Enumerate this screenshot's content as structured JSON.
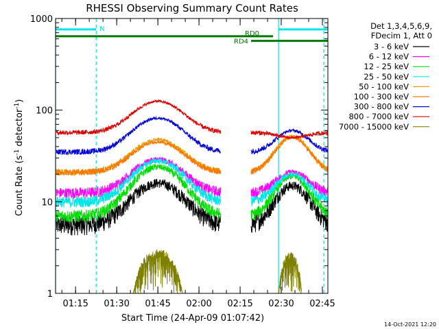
{
  "chart_data": {
    "type": "line",
    "title": "RHESSI Observing Summary Count Rates",
    "xlabel": "Start Time (24-Apr-09 01:07:42)",
    "ylabel_parts": [
      "Count Rate (s",
      "-1",
      " detector",
      "-1",
      ")"
    ],
    "y_scale": "log",
    "ylim": [
      1,
      1000
    ],
    "xlim": [
      "01:07:42",
      "02:47:00"
    ],
    "x_ticks": [
      "01:15",
      "01:30",
      "01:45",
      "02:00",
      "02:15",
      "02:30",
      "02:45"
    ],
    "y_ticks": [
      "1",
      "10",
      "100",
      "1000"
    ],
    "grid": false,
    "legend_position": "right",
    "legend_header": [
      "Det 1,3,4,5,6,9,",
      "FDecim 1, Att 0"
    ],
    "footer_date": "14-Oct-2021 12:20",
    "series": [
      {
        "name": "3 - 6 keV",
        "color": "#000000",
        "base": 5.6,
        "peak1": 16,
        "peak2": 15,
        "noise": 0.12,
        "gap_level": 5.5
      },
      {
        "name": "6 - 12 keV",
        "color": "#ff00ff",
        "base": 12.5,
        "peak1": 29,
        "peak2": 21,
        "noise": 0.07,
        "gap_level": 13
      },
      {
        "name": "12 - 25 keV",
        "color": "#00dd00",
        "base": 7,
        "peak1": 24,
        "peak2": 19,
        "noise": 0.08,
        "gap_level": 7
      },
      {
        "name": "25 - 50 keV",
        "color": "#00e5e5",
        "base": 10,
        "peak1": 28,
        "peak2": 20,
        "noise": 0.07,
        "gap_level": 10
      },
      {
        "name": "50 - 100 keV",
        "color": "#e6a000",
        "base": 21,
        "peak1": 48,
        "peak2": 52,
        "noise": 0.04,
        "gap_level": 21
      },
      {
        "name": "100 - 300 keV",
        "color": "#ff7700",
        "base": 21,
        "peak1": 45,
        "peak2": 50,
        "noise": 0.04,
        "gap_level": 21
      },
      {
        "name": "300 - 800 keV",
        "color": "#0000dd",
        "base": 35,
        "peak1": 82,
        "peak2": 60,
        "noise": 0.035,
        "gap_level": 35
      },
      {
        "name": "800 - 7000 keV",
        "color": "#dd0000",
        "base": 57,
        "peak1": 125,
        "peak2": 50,
        "noise": 0.03,
        "gap_level": 57
      },
      {
        "name": "7000 - 15000 keV",
        "color": "#7f7f00",
        "base": 1,
        "peak1": 2.8,
        "peak2": 2.6,
        "noise": 0.1,
        "gap_level": 1
      }
    ],
    "flags": [
      {
        "label": "N",
        "start": "01:07:42",
        "end": "01:22:30",
        "color": "#00e5e5",
        "level": 760
      },
      {
        "label": "RD0",
        "start": "01:07:42",
        "end": "02:27:00",
        "color": "#007700",
        "level": 640
      },
      {
        "label": "",
        "start": "02:29:00",
        "end": "02:47:00",
        "color": "#00e5e5",
        "level": 760
      },
      {
        "label": "RD4",
        "start": "02:19:00",
        "end": "02:47:00",
        "color": "#007700",
        "level": 570
      }
    ],
    "time_markers": [
      {
        "time": "01:07:42",
        "style": "solid",
        "color": "#00e5e5"
      },
      {
        "time": "01:22:30",
        "style": "dashed",
        "color": "#00e5e5"
      },
      {
        "time": "02:29:00",
        "style": "solid",
        "color": "#00e5e5"
      },
      {
        "time": "02:45:30",
        "style": "dashed",
        "color": "#00e5e5"
      }
    ],
    "orbits": [
      {
        "start": "01:08",
        "sunrise": "01:22",
        "peak": "01:45",
        "end": "02:08"
      },
      {
        "start": "02:19",
        "peak": "02:34",
        "end": "02:47"
      }
    ],
    "attenuator_step_time": "02:19"
  }
}
